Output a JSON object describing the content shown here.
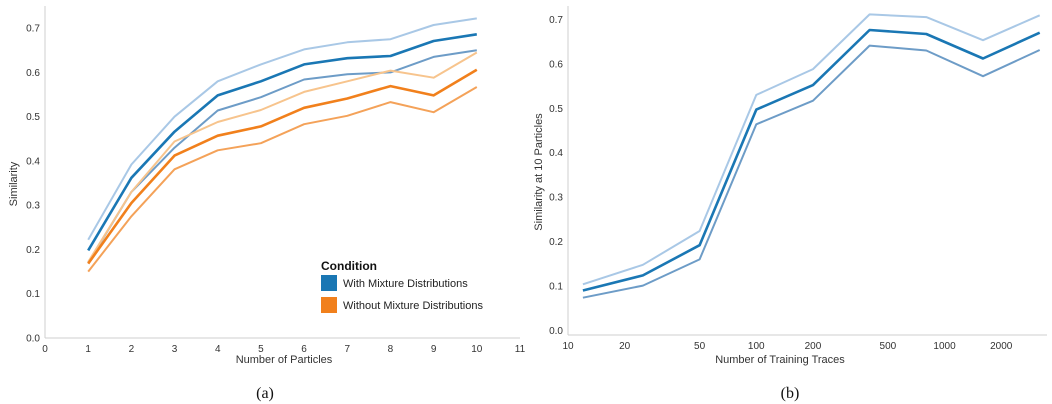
{
  "colors": {
    "with_main": "#1a77b4",
    "with_band": "#a9c8e6",
    "with_band_low": "#6d9cc7",
    "without_main": "#f1801c",
    "without_band_high": "#f7c48d",
    "without_band_low": "#f4a259",
    "axis": "#cfcfcf"
  },
  "chart_data": [
    {
      "type": "line",
      "caption": "(a)",
      "xlabel": "Number of Particles",
      "ylabel": "Similarity",
      "xlim": [
        0,
        11
      ],
      "ylim": [
        0,
        0.75
      ],
      "x_ticks": [
        "0",
        "1",
        "2",
        "3",
        "4",
        "5",
        "6",
        "7",
        "8",
        "9",
        "10",
        "11"
      ],
      "y_ticks": [
        "0.0",
        "0.1",
        "0.2",
        "0.3",
        "0.4",
        "0.5",
        "0.6",
        "0.7"
      ],
      "grid": false,
      "legend": {
        "title": "Condition",
        "position": "bottom-right",
        "entries": [
          {
            "label": "With Mixture Distributions",
            "color": "#1a77b4"
          },
          {
            "label": "Without Mixture Distributions",
            "color": "#f1801c"
          }
        ]
      },
      "x": [
        1,
        2,
        3,
        4,
        5,
        6,
        7,
        8,
        9,
        10
      ],
      "series": [
        {
          "name": "With Mixture Distributions",
          "role": "upper",
          "color": "#a9c8e6",
          "values": [
            0.222,
            0.392,
            0.5,
            0.58,
            0.618,
            0.652,
            0.668,
            0.675,
            0.707,
            0.722
          ]
        },
        {
          "name": "With Mixture Distributions",
          "role": "mean",
          "color": "#1a77b4",
          "values": [
            0.198,
            0.362,
            0.466,
            0.548,
            0.58,
            0.618,
            0.632,
            0.637,
            0.671,
            0.686
          ]
        },
        {
          "name": "With Mixture Distributions",
          "role": "lower",
          "color": "#6d9cc7",
          "values": [
            0.17,
            0.33,
            0.43,
            0.514,
            0.544,
            0.584,
            0.596,
            0.6,
            0.635,
            0.65
          ]
        },
        {
          "name": "Without Mixture Distributions",
          "role": "upper",
          "color": "#f7c48d",
          "values": [
            0.172,
            0.33,
            0.444,
            0.488,
            0.515,
            0.556,
            0.58,
            0.604,
            0.588,
            0.645
          ]
        },
        {
          "name": "Without Mixture Distributions",
          "role": "mean",
          "color": "#f1801c",
          "values": [
            0.168,
            0.305,
            0.412,
            0.457,
            0.478,
            0.52,
            0.541,
            0.569,
            0.548,
            0.606
          ]
        },
        {
          "name": "Without Mixture Distributions",
          "role": "lower",
          "color": "#f4a259",
          "values": [
            0.15,
            0.275,
            0.381,
            0.424,
            0.44,
            0.483,
            0.502,
            0.533,
            0.51,
            0.567
          ]
        }
      ]
    },
    {
      "type": "line",
      "caption": "(b)",
      "xlabel": "Number of Training Traces",
      "ylabel": "Similarity at 10 Particles",
      "xscale": "log",
      "xlim": [
        10,
        3500
      ],
      "ylim": [
        -0.01,
        0.73
      ],
      "x_ticks": [
        10,
        20,
        50,
        100,
        200,
        500,
        1000,
        2000
      ],
      "x_tick_labels": [
        "10",
        "20",
        "50",
        "100",
        "200",
        "500",
        "1000",
        "2000"
      ],
      "y_ticks": [
        "0.0",
        "0.1",
        "0.2",
        "0.3",
        "0.4",
        "0.5",
        "0.6",
        "0.7"
      ],
      "y_tick_values": [
        0,
        0.1,
        0.2,
        0.3,
        0.4,
        0.5,
        0.6,
        0.7
      ],
      "grid": false,
      "x": [
        12,
        25,
        50,
        100,
        200,
        400,
        800,
        1600,
        3200
      ],
      "series": [
        {
          "role": "upper",
          "color": "#a9c8e6",
          "values": [
            0.104,
            0.148,
            0.224,
            0.53,
            0.588,
            0.711,
            0.705,
            0.653,
            0.709
          ]
        },
        {
          "role": "mean",
          "color": "#1a77b4",
          "values": [
            0.09,
            0.124,
            0.192,
            0.497,
            0.552,
            0.676,
            0.667,
            0.612,
            0.67
          ]
        },
        {
          "role": "lower",
          "color": "#6d9cc7",
          "values": [
            0.074,
            0.101,
            0.16,
            0.464,
            0.517,
            0.641,
            0.63,
            0.572,
            0.631
          ]
        }
      ]
    }
  ]
}
